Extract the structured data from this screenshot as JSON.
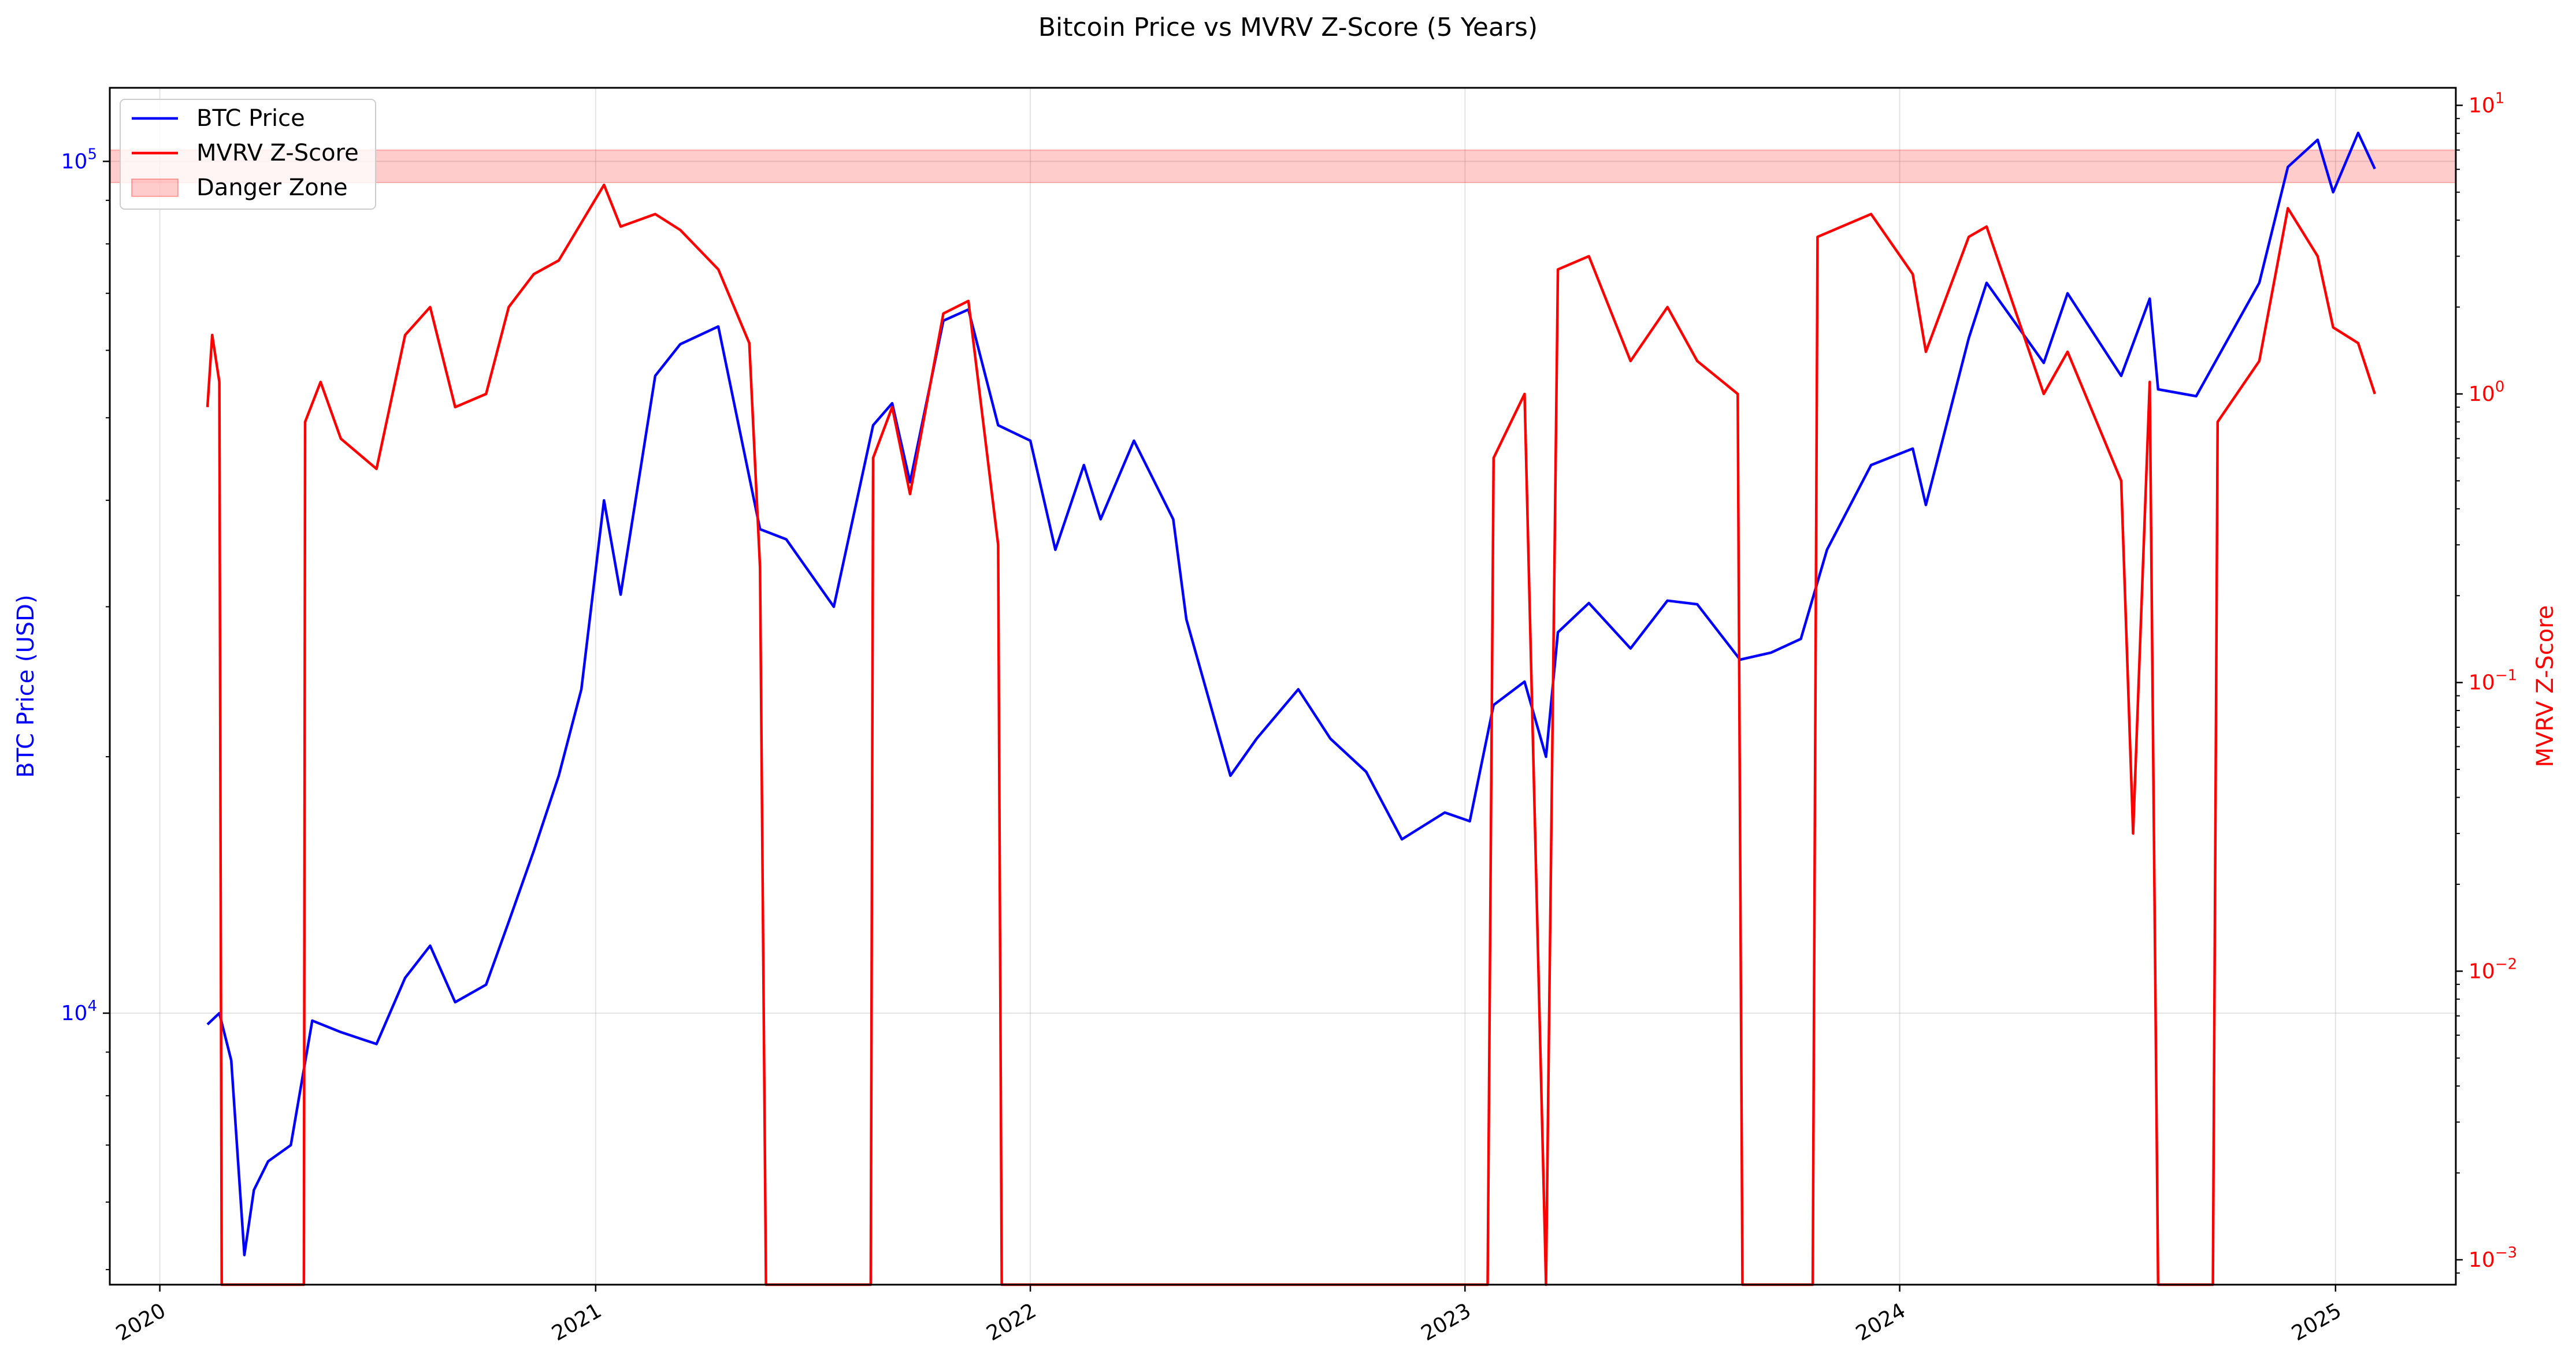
{
  "chart_data": {
    "type": "line",
    "title": "Bitcoin Price vs MVRV Z-Score (5 Years)",
    "x_axis": {
      "ticks": [
        "2020",
        "2021",
        "2022",
        "2023",
        "2024",
        "2025"
      ],
      "xlim": [
        "2019-11-20",
        "2025-04-12"
      ],
      "grid": true
    },
    "y_left": {
      "label": "BTC Price (USD)",
      "scale": "log",
      "ylim": [
        4800,
        122000
      ],
      "ticks": [
        {
          "base": "10",
          "exp": "4",
          "value": 10000
        },
        {
          "base": "10",
          "exp": "5",
          "value": 100000
        }
      ],
      "color": "#0000ff"
    },
    "y_right": {
      "label": "MVRV Z-Score",
      "scale": "log",
      "ylim": [
        0.00082,
        11.5
      ],
      "ticks": [
        {
          "base": "10",
          "exp": "−3",
          "value": 0.001
        },
        {
          "base": "10",
          "exp": "−2",
          "value": 0.01
        },
        {
          "base": "10",
          "exp": "−1",
          "value": 0.1
        },
        {
          "base": "10",
          "exp": "0",
          "value": 1
        },
        {
          "base": "10",
          "exp": "1",
          "value": 10
        }
      ],
      "color": "#ff0000"
    },
    "danger_zone": {
      "from": 5.4,
      "to": 7.0,
      "color": "#ff0000",
      "opacity": 0.2
    },
    "legend": {
      "placement": "top-left",
      "entries": [
        "BTC Price",
        "MVRV Z-Score",
        "Danger Zone"
      ]
    },
    "series": [
      {
        "name": "BTC Price",
        "axis": "left",
        "color": "#0000ff",
        "points": [
          [
            "2020-02-10",
            9700
          ],
          [
            "2020-02-20",
            10000
          ],
          [
            "2020-03-01",
            8800
          ],
          [
            "2020-03-12",
            5200
          ],
          [
            "2020-03-20",
            6200
          ],
          [
            "2020-04-01",
            6700
          ],
          [
            "2020-04-20",
            7000
          ],
          [
            "2020-05-08",
            9800
          ],
          [
            "2020-06-01",
            9500
          ],
          [
            "2020-07-01",
            9200
          ],
          [
            "2020-07-25",
            11000
          ],
          [
            "2020-08-15",
            12000
          ],
          [
            "2020-09-05",
            10300
          ],
          [
            "2020-10-01",
            10800
          ],
          [
            "2020-10-20",
            12800
          ],
          [
            "2020-11-10",
            15500
          ],
          [
            "2020-12-01",
            19000
          ],
          [
            "2020-12-20",
            24000
          ],
          [
            "2021-01-08",
            40000
          ],
          [
            "2021-01-22",
            31000
          ],
          [
            "2021-02-20",
            56000
          ],
          [
            "2021-03-13",
            61000
          ],
          [
            "2021-04-14",
            64000
          ],
          [
            "2021-05-19",
            37000
          ],
          [
            "2021-06-10",
            36000
          ],
          [
            "2021-07-20",
            30000
          ],
          [
            "2021-08-22",
            49000
          ],
          [
            "2021-09-07",
            52000
          ],
          [
            "2021-09-22",
            42000
          ],
          [
            "2021-10-20",
            65000
          ],
          [
            "2021-11-10",
            67000
          ],
          [
            "2021-12-05",
            49000
          ],
          [
            "2022-01-01",
            47000
          ],
          [
            "2022-01-22",
            35000
          ],
          [
            "2022-02-15",
            44000
          ],
          [
            "2022-03-01",
            38000
          ],
          [
            "2022-03-29",
            47000
          ],
          [
            "2022-05-01",
            38000
          ],
          [
            "2022-05-12",
            29000
          ],
          [
            "2022-06-18",
            19000
          ],
          [
            "2022-07-10",
            21000
          ],
          [
            "2022-08-14",
            24000
          ],
          [
            "2022-09-10",
            21000
          ],
          [
            "2022-10-10",
            19200
          ],
          [
            "2022-11-09",
            16000
          ],
          [
            "2022-12-15",
            17200
          ],
          [
            "2023-01-05",
            16800
          ],
          [
            "2023-01-25",
            23000
          ],
          [
            "2023-02-20",
            24500
          ],
          [
            "2023-03-10",
            20000
          ],
          [
            "2023-03-20",
            28000
          ],
          [
            "2023-04-15",
            30300
          ],
          [
            "2023-05-20",
            26800
          ],
          [
            "2023-06-20",
            30500
          ],
          [
            "2023-07-15",
            30200
          ],
          [
            "2023-08-20",
            26000
          ],
          [
            "2023-09-15",
            26500
          ],
          [
            "2023-10-10",
            27500
          ],
          [
            "2023-11-01",
            35000
          ],
          [
            "2023-12-08",
            44000
          ],
          [
            "2024-01-12",
            46000
          ],
          [
            "2024-01-23",
            39500
          ],
          [
            "2024-02-28",
            62000
          ],
          [
            "2024-03-14",
            72000
          ],
          [
            "2024-05-01",
            58000
          ],
          [
            "2024-05-21",
            70000
          ],
          [
            "2024-07-05",
            56000
          ],
          [
            "2024-07-29",
            69000
          ],
          [
            "2024-08-05",
            54000
          ],
          [
            "2024-09-06",
            53000
          ],
          [
            "2024-10-29",
            72000
          ],
          [
            "2024-11-22",
            98500
          ],
          [
            "2024-12-17",
            106000
          ],
          [
            "2024-12-30",
            92000
          ],
          [
            "2025-01-20",
            108000
          ],
          [
            "2025-02-03",
            98000
          ]
        ]
      },
      {
        "name": "MVRV Z-Score",
        "axis": "right",
        "color": "#ff0000",
        "points": [
          [
            "2020-02-10",
            0.9
          ],
          [
            "2020-02-14",
            1.6
          ],
          [
            "2020-02-20",
            1.1
          ],
          [
            "2020-02-22",
            0.0008
          ],
          [
            "2020-05-01",
            0.0008
          ],
          [
            "2020-05-02",
            0.8
          ],
          [
            "2020-05-15",
            1.1
          ],
          [
            "2020-06-01",
            0.7
          ],
          [
            "2020-07-01",
            0.55
          ],
          [
            "2020-07-25",
            1.6
          ],
          [
            "2020-08-15",
            2.0
          ],
          [
            "2020-09-05",
            0.9
          ],
          [
            "2020-10-01",
            1.0
          ],
          [
            "2020-10-20",
            2.0
          ],
          [
            "2020-11-10",
            2.6
          ],
          [
            "2020-12-01",
            2.9
          ],
          [
            "2021-01-08",
            5.3
          ],
          [
            "2021-01-22",
            3.8
          ],
          [
            "2021-02-20",
            4.2
          ],
          [
            "2021-03-13",
            3.7
          ],
          [
            "2021-04-14",
            2.7
          ],
          [
            "2021-05-10",
            1.5
          ],
          [
            "2021-05-19",
            0.25
          ],
          [
            "2021-05-24",
            0.0008
          ],
          [
            "2021-08-20",
            0.0008
          ],
          [
            "2021-08-22",
            0.6
          ],
          [
            "2021-09-07",
            0.9
          ],
          [
            "2021-09-22",
            0.45
          ],
          [
            "2021-10-20",
            1.9
          ],
          [
            "2021-11-10",
            2.1
          ],
          [
            "2021-12-05",
            0.3
          ],
          [
            "2021-12-08",
            0.0008
          ],
          [
            "2023-01-20",
            0.0008
          ],
          [
            "2023-01-25",
            0.6
          ],
          [
            "2023-02-20",
            1.0
          ],
          [
            "2023-03-10",
            0.0008
          ],
          [
            "2023-03-20",
            2.7
          ],
          [
            "2023-04-15",
            3.0
          ],
          [
            "2023-05-20",
            1.3
          ],
          [
            "2023-06-20",
            2.0
          ],
          [
            "2023-07-15",
            1.3
          ],
          [
            "2023-08-18",
            1.0
          ],
          [
            "2023-08-22",
            0.0008
          ],
          [
            "2023-10-20",
            0.0008
          ],
          [
            "2023-10-24",
            3.5
          ],
          [
            "2023-12-08",
            4.2
          ],
          [
            "2024-01-12",
            2.6
          ],
          [
            "2024-01-23",
            1.4
          ],
          [
            "2024-02-28",
            3.5
          ],
          [
            "2024-03-14",
            3.8
          ],
          [
            "2024-05-01",
            1.0
          ],
          [
            "2024-05-21",
            1.4
          ],
          [
            "2024-07-05",
            0.5
          ],
          [
            "2024-07-15",
            0.03
          ],
          [
            "2024-07-29",
            1.1
          ],
          [
            "2024-08-05",
            0.0008
          ],
          [
            "2024-09-20",
            0.0008
          ],
          [
            "2024-09-24",
            0.8
          ],
          [
            "2024-10-29",
            1.3
          ],
          [
            "2024-11-22",
            4.4
          ],
          [
            "2024-12-17",
            3.0
          ],
          [
            "2024-12-30",
            1.7
          ],
          [
            "2025-01-20",
            1.5
          ],
          [
            "2025-02-03",
            1.0
          ]
        ]
      }
    ]
  }
}
